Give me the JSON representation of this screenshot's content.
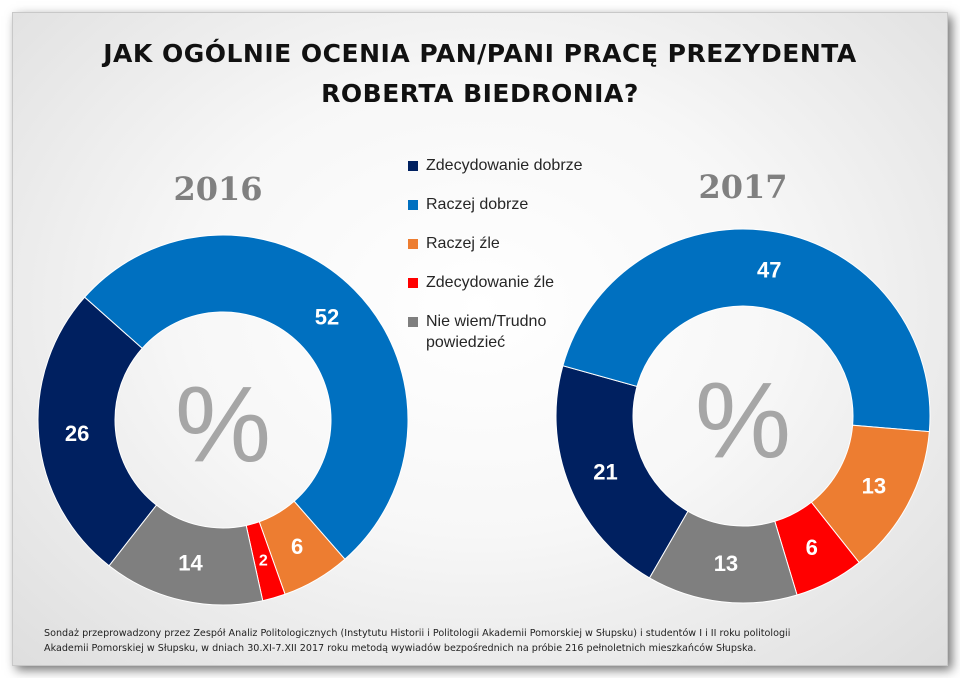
{
  "title": {
    "line1": "JAK OGÓLNIE OCENIA PAN/PANI PRACĘ PREZYDENTA",
    "line2": "ROBERTA BIEDRONIA?"
  },
  "center_symbol": "%",
  "footnote": {
    "line1": "Sondaż przeprowadzony przez Zespół Analiz Politologicznych (Instytutu Historii i Politologii Akademii Pomorskiej w Słupsku) i studentów I i II roku politologii",
    "line2": "Akademii Pomorskiej w Słupsku, w dniach 30.XI-7.XII 2017 roku metodą wywiadów bezpośrednich na próbie 216 pełnoletnich mieszkańców Słupska."
  },
  "chart_data": {
    "type": "donut",
    "legend_position": "center",
    "categories": [
      {
        "label": "Zdecydowanie dobrze",
        "color": "#002060"
      },
      {
        "label": "Raczej dobrze",
        "color": "#0070c0"
      },
      {
        "label": "Raczej źle",
        "color": "#ed7d31"
      },
      {
        "label": "Zdecydowanie źle",
        "color": "#ff0000"
      },
      {
        "label": "Nie wiem/Trudno powiedzieć",
        "color": "#7f7f7f"
      }
    ],
    "charts": [
      {
        "year": "2016",
        "values": [
          26,
          52,
          6,
          2,
          14
        ]
      },
      {
        "year": "2017",
        "values": [
          21,
          47,
          13,
          6,
          13
        ]
      }
    ]
  }
}
